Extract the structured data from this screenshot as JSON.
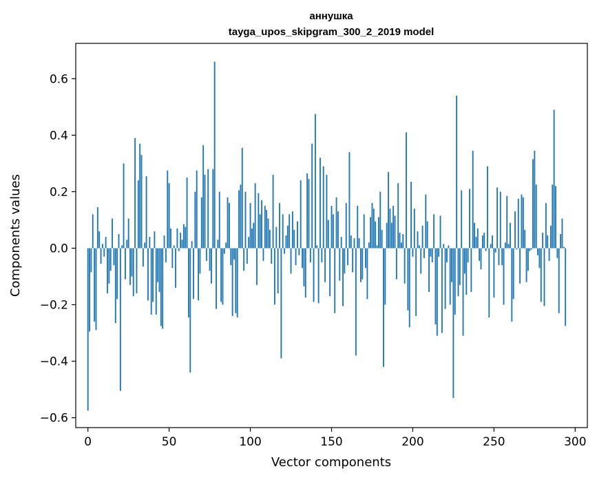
{
  "chart_data": {
    "type": "bar",
    "title": "аннушка",
    "subtitle": "tayga_upos_skipgram_300_2_2019 model",
    "xlabel": "Vector components",
    "ylabel": "Components values",
    "xlim": [
      -7.5,
      307.5
    ],
    "ylim": [
      -0.635,
      0.725
    ],
    "xticks": [
      0,
      50,
      100,
      150,
      200,
      250,
      300
    ],
    "xtick_labels": [
      "0",
      "50",
      "100",
      "150",
      "200",
      "250",
      "300"
    ],
    "yticks": [
      -0.6,
      -0.4,
      -0.2,
      0.0,
      0.2,
      0.4,
      0.6
    ],
    "ytick_labels": [
      "−0.6",
      "−0.4",
      "−0.2",
      "0.0",
      "0.2",
      "0.4",
      "0.6"
    ],
    "grid": false,
    "legend": "none",
    "bar_color": "#1f77b4",
    "values": [
      -0.575,
      -0.295,
      -0.085,
      0.12,
      -0.26,
      -0.29,
      0.145,
      0.06,
      -0.055,
      0.015,
      -0.03,
      0.04,
      -0.16,
      -0.125,
      -0.08,
      0.105,
      -0.06,
      -0.265,
      -0.18,
      0.05,
      -0.505,
      0.01,
      0.3,
      -0.11,
      0.03,
      0.105,
      -0.13,
      -0.1,
      -0.17,
      0.39,
      -0.16,
      0.24,
      0.37,
      0.33,
      -0.065,
      0.02,
      0.255,
      -0.185,
      0.04,
      -0.235,
      -0.19,
      0.06,
      -0.235,
      -0.12,
      -0.155,
      -0.275,
      -0.285,
      0.045,
      -0.05,
      0.275,
      0.23,
      0.07,
      -0.07,
      0.01,
      -0.14,
      0.07,
      -0.01,
      0.055,
      0.03,
      0.085,
      0.075,
      0.25,
      -0.245,
      -0.44,
      0.025,
      -0.18,
      0.2,
      0.275,
      -0.185,
      -0.09,
      0.18,
      0.365,
      0.26,
      -0.045,
      0.28,
      -0.08,
      -0.125,
      0.28,
      0.66,
      -0.215,
      0.03,
      0.2,
      -0.19,
      -0.2,
      -0.02,
      0.02,
      0.18,
      0.16,
      -0.06,
      -0.24,
      -0.04,
      -0.23,
      -0.245,
      0.205,
      0.225,
      0.355,
      -0.08,
      0.2,
      -0.055,
      0.04,
      0.16,
      0.07,
      0.09,
      0.23,
      -0.13,
      0.195,
      0.12,
      0.17,
      -0.045,
      0.15,
      0.135,
      0.105,
      0.065,
      -0.055,
      0.26,
      -0.2,
      0.075,
      -0.16,
      0.16,
      -0.39,
      0.12,
      -0.02,
      0.045,
      0.08,
      0.12,
      -0.09,
      0.13,
      0.065,
      -0.06,
      0.095,
      -0.025,
      0.24,
      -0.07,
      -0.135,
      -0.175,
      0.265,
      0.245,
      -0.05,
      0.37,
      -0.19,
      0.475,
      0.01,
      -0.195,
      0.32,
      -0.05,
      0.29,
      -0.12,
      0.26,
      0.1,
      -0.17,
      0.15,
      0.12,
      -0.23,
      0.18,
      0.13,
      -0.115,
      0.04,
      -0.205,
      -0.09,
      0.16,
      -0.06,
      0.34,
      0.045,
      -0.085,
      0.035,
      -0.38,
      0.15,
      0.035,
      -0.12,
      -0.11,
      0.12,
      -0.07,
      -0.18,
      0.02,
      0.11,
      0.16,
      0.14,
      0.095,
      0.01,
      0.11,
      0.2,
      0.065,
      -0.42,
      -0.2,
      0.09,
      0.27,
      0.14,
      0.09,
      0.15,
      0.115,
      -0.11,
      0.23,
      0.055,
      0.02,
      0.05,
      -0.125,
      0.41,
      -0.22,
      -0.28,
      0.235,
      -0.03,
      0.14,
      -0.24,
      0.06,
      0.01,
      -0.09,
      0.08,
      -0.035,
      0.19,
      0.095,
      -0.155,
      -0.03,
      -0.05,
      0.12,
      -0.27,
      -0.31,
      -0.03,
      0.115,
      -0.3,
      0.015,
      -0.215,
      -0.05,
      0.01,
      -0.2,
      -0.12,
      -0.53,
      -0.235,
      0.54,
      -0.17,
      -0.13,
      0.205,
      -0.31,
      -0.09,
      -0.165,
      -0.05,
      0.21,
      -0.155,
      0.345,
      0.09,
      0.04,
      0.07,
      -0.045,
      -0.075,
      0.045,
      0.055,
      -0.01,
      0.29,
      -0.245,
      0.015,
      0.045,
      -0.175,
      -0.015,
      0.215,
      -0.06,
      0.2,
      -0.06,
      -0.2,
      0.02,
      0.185,
      0.015,
      0.09,
      -0.26,
      -0.18,
      0.13,
      -0.005,
      0.175,
      -0.125,
      0.19,
      0.18,
      0.065,
      -0.12,
      -0.08,
      -0.01,
      -0.005,
      0.315,
      0.345,
      0.225,
      -0.025,
      -0.07,
      -0.19,
      0.055,
      -0.205,
      0.16,
      0.045,
      -0.045,
      0.08,
      0.225,
      0.49,
      0.22,
      -0.035,
      -0.23,
      0.05,
      0.105,
      0.005,
      -0.275
    ]
  }
}
